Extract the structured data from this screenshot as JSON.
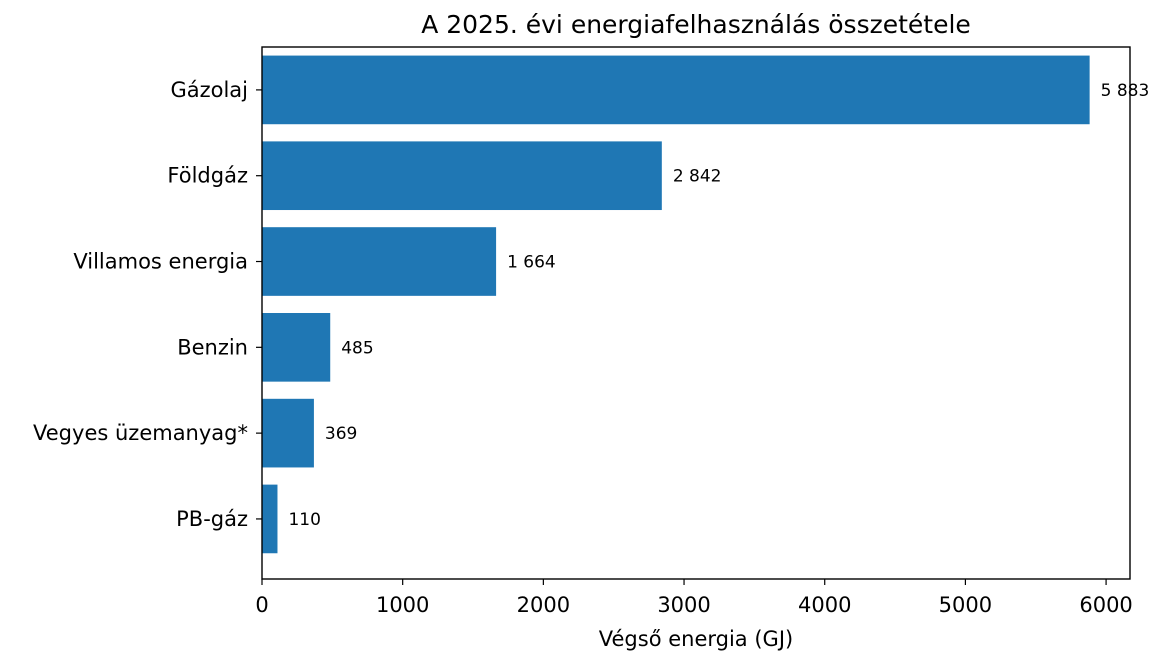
{
  "chart_data": {
    "type": "bar",
    "orientation": "horizontal",
    "title": "A 2025. évi energiafelhasználás összetétele",
    "xlabel": "Végső energia (GJ)",
    "ylabel": "",
    "xlim": [
      0,
      6170
    ],
    "xticks": [
      0,
      1000,
      2000,
      3000,
      4000,
      5000,
      6000
    ],
    "xtick_labels": [
      "0",
      "1000",
      "2000",
      "3000",
      "4000",
      "5000",
      "6000"
    ],
    "categories": [
      "Gázolaj",
      "Földgáz",
      "Villamos energia",
      "Benzin",
      "Vegyes üzemanyag*",
      "PB-gáz"
    ],
    "values": [
      5883,
      2842,
      1664,
      485,
      369,
      110
    ],
    "value_labels": [
      "5 883",
      "2 842",
      "1 664",
      "485",
      "369",
      "110"
    ],
    "bar_color": "#1f77b4",
    "grid": false,
    "legend": "none"
  }
}
